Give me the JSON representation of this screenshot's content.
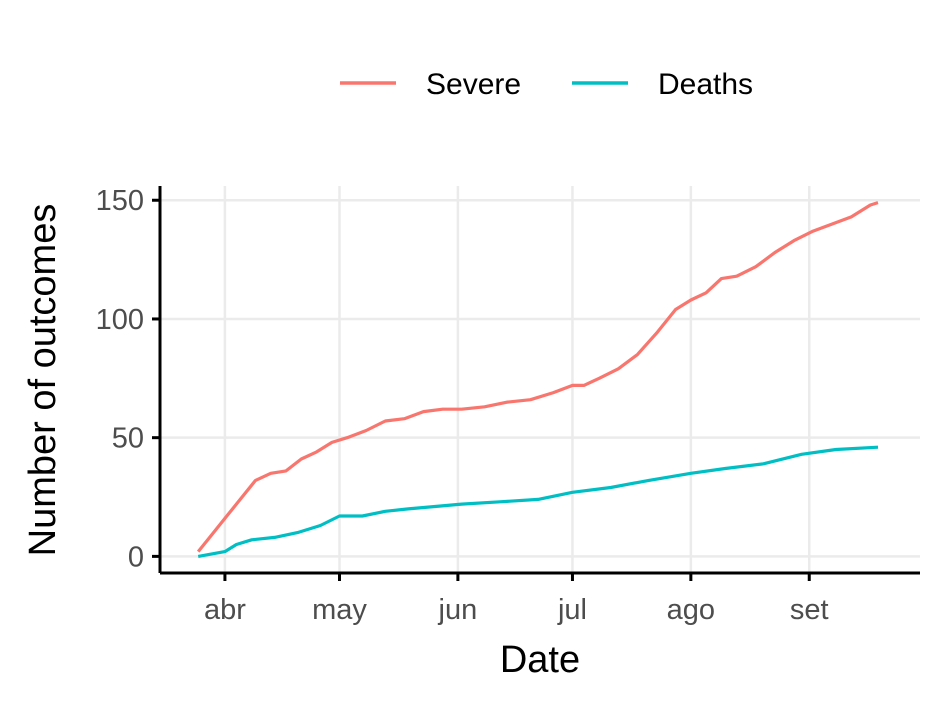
{
  "chart_data": {
    "type": "line",
    "xlabel": "Date",
    "ylabel": "Number of outcomes",
    "x_axis": {
      "type": "date",
      "range": [
        "2020-03-15",
        "2020-09-30"
      ],
      "ticks": [
        {
          "date": "2020-04-01",
          "label": "abr"
        },
        {
          "date": "2020-05-01",
          "label": "may"
        },
        {
          "date": "2020-06-01",
          "label": "jun"
        },
        {
          "date": "2020-07-01",
          "label": "jul"
        },
        {
          "date": "2020-08-01",
          "label": "ago"
        },
        {
          "date": "2020-09-01",
          "label": "set"
        }
      ]
    },
    "y_axis": {
      "range": [
        -7,
        156
      ],
      "ticks": [
        0,
        50,
        100,
        150
      ]
    },
    "grid": true,
    "legend": {
      "position": "top"
    },
    "series": [
      {
        "name": "Severe",
        "color": "#F8766D",
        "points": [
          [
            "2020-03-25",
            2
          ],
          [
            "2020-03-29",
            10
          ],
          [
            "2020-04-01",
            16
          ],
          [
            "2020-04-05",
            24
          ],
          [
            "2020-04-09",
            32
          ],
          [
            "2020-04-13",
            35
          ],
          [
            "2020-04-17",
            36
          ],
          [
            "2020-04-21",
            41
          ],
          [
            "2020-04-25",
            44
          ],
          [
            "2020-04-29",
            48
          ],
          [
            "2020-05-03",
            50
          ],
          [
            "2020-05-08",
            53
          ],
          [
            "2020-05-13",
            57
          ],
          [
            "2020-05-18",
            58
          ],
          [
            "2020-05-23",
            61
          ],
          [
            "2020-05-28",
            62
          ],
          [
            "2020-06-02",
            62
          ],
          [
            "2020-06-08",
            63
          ],
          [
            "2020-06-14",
            65
          ],
          [
            "2020-06-20",
            66
          ],
          [
            "2020-06-26",
            69
          ],
          [
            "2020-07-01",
            72
          ],
          [
            "2020-07-04",
            72
          ],
          [
            "2020-07-08",
            75
          ],
          [
            "2020-07-13",
            79
          ],
          [
            "2020-07-18",
            85
          ],
          [
            "2020-07-23",
            94
          ],
          [
            "2020-07-28",
            104
          ],
          [
            "2020-08-01",
            108
          ],
          [
            "2020-08-05",
            111
          ],
          [
            "2020-08-09",
            117
          ],
          [
            "2020-08-13",
            118
          ],
          [
            "2020-08-18",
            122
          ],
          [
            "2020-08-23",
            128
          ],
          [
            "2020-08-28",
            133
          ],
          [
            "2020-09-02",
            137
          ],
          [
            "2020-09-07",
            140
          ],
          [
            "2020-09-12",
            143
          ],
          [
            "2020-09-17",
            148
          ],
          [
            "2020-09-19",
            149
          ]
        ]
      },
      {
        "name": "Deaths",
        "color": "#00BFC4",
        "points": [
          [
            "2020-03-25",
            0
          ],
          [
            "2020-04-01",
            2
          ],
          [
            "2020-04-04",
            5
          ],
          [
            "2020-04-08",
            7
          ],
          [
            "2020-04-14",
            8
          ],
          [
            "2020-04-20",
            10
          ],
          [
            "2020-04-26",
            13
          ],
          [
            "2020-05-01",
            17
          ],
          [
            "2020-05-07",
            17
          ],
          [
            "2020-05-13",
            19
          ],
          [
            "2020-05-19",
            20
          ],
          [
            "2020-05-26",
            21
          ],
          [
            "2020-06-02",
            22
          ],
          [
            "2020-06-12",
            23
          ],
          [
            "2020-06-22",
            24
          ],
          [
            "2020-07-01",
            27
          ],
          [
            "2020-07-11",
            29
          ],
          [
            "2020-07-21",
            32
          ],
          [
            "2020-08-01",
            35
          ],
          [
            "2020-08-10",
            37
          ],
          [
            "2020-08-20",
            39
          ],
          [
            "2020-08-30",
            43
          ],
          [
            "2020-09-08",
            45
          ],
          [
            "2020-09-19",
            46
          ]
        ]
      }
    ]
  }
}
